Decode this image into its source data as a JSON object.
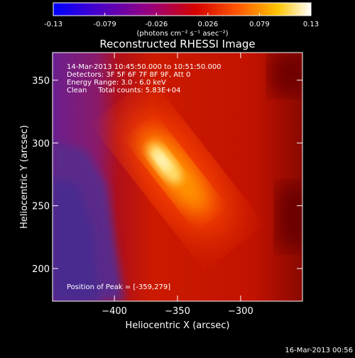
{
  "colorbar": {
    "tick_labels": [
      "-0.13",
      "-0.079",
      "-0.026",
      "0.026",
      "0.079",
      "0.13"
    ],
    "unit_label": "(photons cm⁻² s⁻¹ asec⁻²)"
  },
  "chart_data": {
    "type": "heatmap",
    "title": "Reconstructed RHESSI Image",
    "xlabel": "Heliocentric X (arcsec)",
    "ylabel": "Heliocentric Y (arcsec)",
    "xlim": [
      -448,
      -388
    ],
    "ylim": [
      174,
      372
    ],
    "x_ticks": [
      -400,
      -350,
      -300
    ],
    "y_ticks": [
      200,
      250,
      300,
      350
    ],
    "colorbar_range": [
      -0.13,
      0.13
    ],
    "peak": [
      -359,
      279
    ],
    "annotations": [
      "14-Mar-2013 10:45:50.000 to 10:51:50.000",
      "Detectors: 3F 5F 6F 7F 8F 9F, Att 0",
      "Energy Range: 3.0 - 6.0 keV",
      "Clean     Total counts: 5.83E+04"
    ],
    "peak_label": "Position of Peak = [-359,279]"
  },
  "footer": {
    "timestamp": "16-Mar-2013 00:56"
  }
}
